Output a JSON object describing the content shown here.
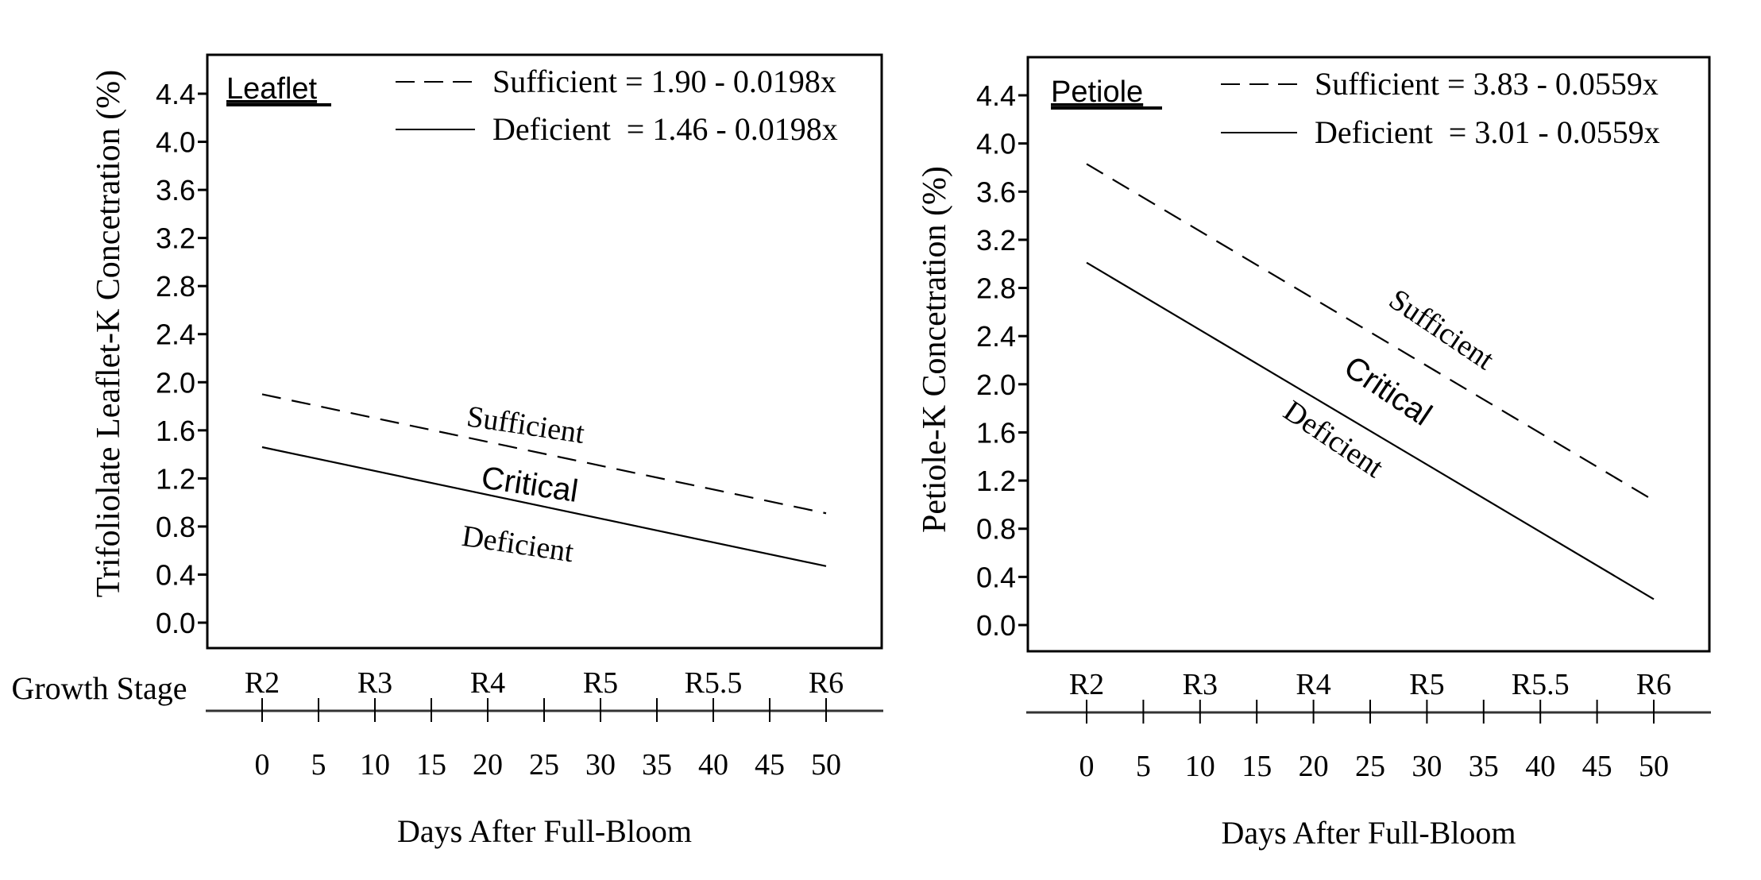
{
  "chart_data": [
    {
      "type": "line",
      "panel_title": "Leaflet",
      "ylabel": "Trifoliolate Leaflet-K Concetration (%)",
      "xlabel": "Days After Full-Bloom",
      "growth_stage_label": "Growth Stage",
      "ylim": [
        0.0,
        4.4
      ],
      "yticks": [
        "0.0",
        "0.4",
        "0.8",
        "1.2",
        "1.6",
        "2.0",
        "2.4",
        "2.8",
        "3.2",
        "3.6",
        "4.0",
        "4.4"
      ],
      "ytick_values": [
        0.0,
        0.4,
        0.8,
        1.2,
        1.6,
        2.0,
        2.4,
        2.8,
        3.2,
        3.6,
        4.0,
        4.4
      ],
      "xlim": [
        0,
        50
      ],
      "xticks": [
        0,
        5,
        10,
        15,
        20,
        25,
        30,
        35,
        40,
        45,
        50
      ],
      "xtick_labels": [
        "0",
        "5",
        "10",
        "15",
        "20",
        "25",
        "30",
        "35",
        "40",
        "45",
        "50"
      ],
      "growth_stages": [
        {
          "label": "R2",
          "day": 0
        },
        {
          "label": "R3",
          "day": 10
        },
        {
          "label": "R4",
          "day": 20
        },
        {
          "label": "R5",
          "day": 30
        },
        {
          "label": "R5.5",
          "day": 40
        },
        {
          "label": "R6",
          "day": 50
        }
      ],
      "series": [
        {
          "name": "Sufficient",
          "style": "dashed",
          "equation": "Sufficient = 1.90 - 0.0198x",
          "intercept": 1.9,
          "slope": -0.0198,
          "x": [
            0,
            50
          ],
          "y": [
            1.9,
            0.91
          ]
        },
        {
          "name": "Deficient",
          "style": "solid",
          "equation": "Deficient  = 1.46 - 0.0198x",
          "intercept": 1.46,
          "slope": -0.0198,
          "x": [
            0,
            50
          ],
          "y": [
            1.46,
            0.47
          ]
        }
      ],
      "region_labels": [
        "Sufficient",
        "Critical",
        "Deficient"
      ],
      "legend_placement": "top-right",
      "grid": false
    },
    {
      "type": "line",
      "panel_title": "Petiole",
      "ylabel": "Petiole-K Concetration (%)",
      "xlabel": "Days After Full-Bloom",
      "ylim": [
        0.0,
        4.4
      ],
      "yticks": [
        "0.0",
        "0.4",
        "0.8",
        "1.2",
        "1.6",
        "2.0",
        "2.4",
        "2.8",
        "3.2",
        "3.6",
        "4.0",
        "4.4"
      ],
      "ytick_values": [
        0.0,
        0.4,
        0.8,
        1.2,
        1.6,
        2.0,
        2.4,
        2.8,
        3.2,
        3.6,
        4.0,
        4.4
      ],
      "xlim": [
        0,
        50
      ],
      "xticks": [
        0,
        5,
        10,
        15,
        20,
        25,
        30,
        35,
        40,
        45,
        50
      ],
      "xtick_labels": [
        "0",
        "5",
        "10",
        "15",
        "20",
        "25",
        "30",
        "35",
        "40",
        "45",
        "50"
      ],
      "growth_stages": [
        {
          "label": "R2",
          "day": 0
        },
        {
          "label": "R3",
          "day": 10
        },
        {
          "label": "R4",
          "day": 20
        },
        {
          "label": "R5",
          "day": 30
        },
        {
          "label": "R5.5",
          "day": 40
        },
        {
          "label": "R6",
          "day": 50
        }
      ],
      "series": [
        {
          "name": "Sufficient",
          "style": "dashed",
          "equation": "Sufficient = 3.83 - 0.0559x",
          "intercept": 3.83,
          "slope": -0.0559,
          "x": [
            0,
            50
          ],
          "y": [
            3.83,
            1.035
          ]
        },
        {
          "name": "Deficient",
          "style": "solid",
          "equation": "Deficient  = 3.01 - 0.0559x",
          "intercept": 3.01,
          "slope": -0.0559,
          "x": [
            0,
            50
          ],
          "y": [
            3.01,
            0.215
          ]
        }
      ],
      "region_labels": [
        "Sufficient",
        "Critical",
        "Deficient"
      ],
      "legend_placement": "top-right",
      "grid": false
    }
  ]
}
